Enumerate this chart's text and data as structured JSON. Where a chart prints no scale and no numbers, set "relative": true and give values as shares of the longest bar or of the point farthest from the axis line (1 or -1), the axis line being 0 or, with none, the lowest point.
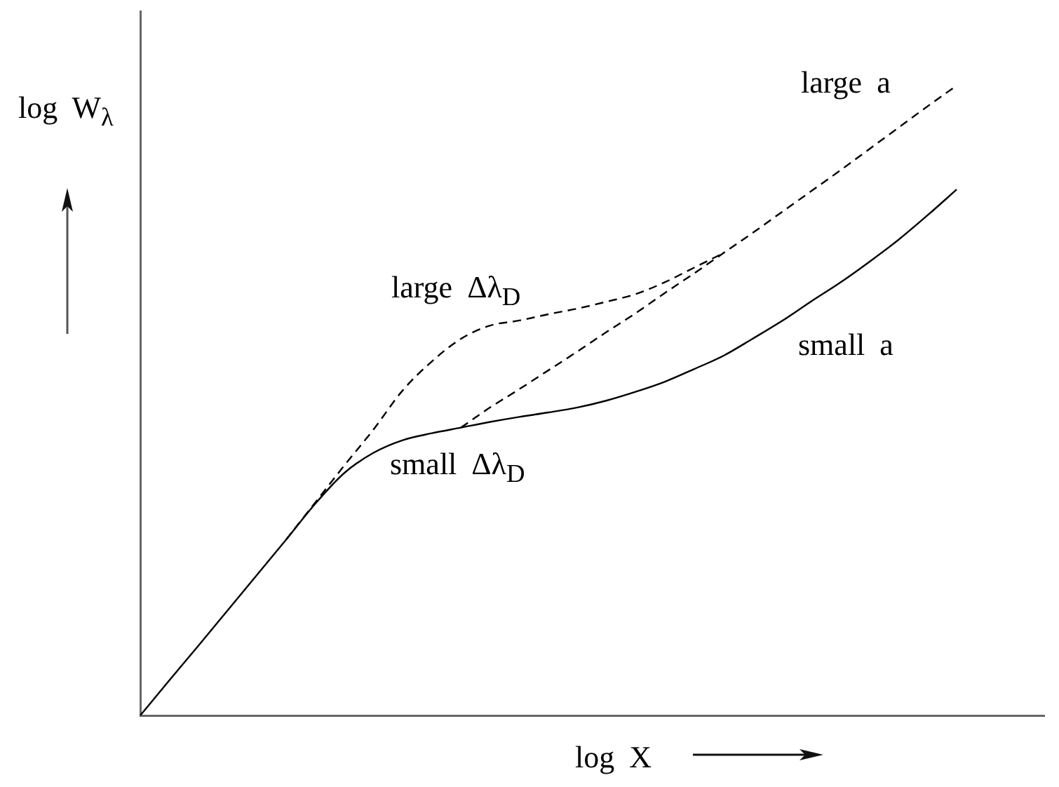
{
  "chart_data": {
    "type": "line",
    "xlabel": "log X",
    "ylabel": "log W$_{λ}$",
    "relative": true,
    "tick_labels": false,
    "grid": false,
    "legend": false,
    "marker": "none",
    "categories": [
      null,
      null,
      null,
      null,
      null,
      null,
      null,
      null,
      null,
      null,
      null,
      null,
      null,
      null,
      null,
      null,
      null,
      null,
      null,
      null,
      null,
      null,
      null,
      null,
      null,
      null,
      null,
      null,
      null,
      null,
      null,
      null
    ],
    "series": [
      {
        "color": "#000000",
        "line_style": "solid",
        "values": [
          0,
          0.056,
          0.111,
          0.167,
          0.223,
          0.279,
          0.336,
          0.385,
          0.417,
          0.437,
          0.448,
          0.457,
          0.466,
          0.474,
          0.481,
          0.489,
          0.5,
          0.514,
          0.53,
          0.55,
          0.571,
          0.598,
          0.626,
          0.657,
          0.687,
          0.72,
          0.755,
          0.794,
          0.835,
          null,
          null,
          null
        ]
      },
      {
        "color": "#000000",
        "line_style": "dashed",
        "values": [
          null,
          null,
          null,
          null,
          null,
          0.279,
          0.338,
          0.397,
          0.454,
          0.516,
          0.562,
          0.598,
          0.619,
          0.627,
          0.637,
          0.646,
          0.657,
          0.669,
          0.688,
          0.711,
          0.734,
          null,
          null,
          null,
          null,
          null,
          null,
          null,
          null,
          null,
          null,
          null
        ]
      },
      {
        "color": "#000000",
        "line_style": "dashed",
        "values": [
          null,
          null,
          null,
          null,
          null,
          null,
          null,
          null,
          null,
          null,
          null,
          0.457,
          0.489,
          0.518,
          0.548,
          0.578,
          0.609,
          0.639,
          0.671,
          0.702,
          0.734,
          0.766,
          0.799,
          0.832,
          0.865,
          0.899,
          0.933,
          0.967,
          1,
          null,
          null,
          null
        ]
      }
    ],
    "annotations": [
      "large a",
      "large Δλ$_{D}$",
      "small a",
      "small Δλ$_{D}$"
    ]
  }
}
